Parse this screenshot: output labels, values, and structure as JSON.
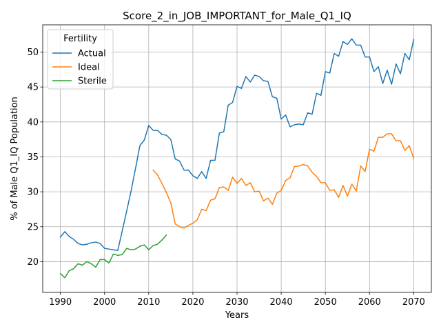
{
  "chart_data": {
    "type": "line",
    "title": "Score_2_in_JOB_IMPORTANT_for_Male_Q1_IQ",
    "xlabel": "Years",
    "ylabel": "% of Male Q1_IQ Population",
    "xlim": [
      1986.0,
      2074.0
    ],
    "ylim": [
      15.6,
      53.9
    ],
    "xticks": [
      1990,
      2000,
      2010,
      2020,
      2030,
      2040,
      2050,
      2060,
      2070
    ],
    "yticks": [
      20,
      25,
      30,
      35,
      40,
      45,
      50
    ],
    "grid": true,
    "legend": {
      "title": "Fertility",
      "placement": "top-left"
    },
    "series": [
      {
        "name": "Actual",
        "color": "#1f77b4",
        "x_start": 1990,
        "values": [
          23.5,
          24.3,
          23.6,
          23.2,
          22.6,
          22.4,
          22.5,
          22.7,
          22.8,
          22.6,
          21.9,
          21.8,
          21.7,
          21.6,
          24.4,
          27.2,
          30.1,
          33.3,
          36.6,
          37.4,
          39.5,
          38.8,
          38.8,
          38.2,
          38.1,
          37.5,
          34.7,
          34.4,
          33.1,
          33.1,
          32.3,
          31.9,
          32.9,
          31.9,
          34.5,
          34.5,
          38.4,
          38.6,
          42.4,
          42.8,
          45.1,
          44.8,
          46.5,
          45.7,
          46.7,
          46.5,
          45.9,
          45.8,
          43.6,
          43.4,
          40.4,
          41.0,
          39.3,
          39.6,
          39.7,
          39.6,
          41.3,
          41.1,
          44.1,
          43.8,
          47.2,
          47.0,
          49.8,
          49.4,
          51.5,
          51.1,
          51.9,
          51.0,
          51.0,
          49.3,
          49.3,
          47.2,
          47.9,
          45.5,
          47.4,
          45.4,
          48.3,
          46.9,
          49.8,
          48.9,
          51.8
        ]
      },
      {
        "name": "Ideal",
        "color": "#ff7f0e",
        "x_start": 2011,
        "values": [
          33.1,
          32.4,
          31.2,
          29.9,
          28.4,
          25.4,
          25.0,
          24.8,
          25.2,
          25.5,
          26.0,
          27.5,
          27.3,
          28.8,
          29.0,
          30.6,
          30.7,
          30.2,
          32.1,
          31.2,
          31.9,
          30.9,
          31.3,
          30.0,
          30.1,
          28.7,
          29.1,
          28.2,
          29.8,
          30.2,
          31.6,
          32.0,
          33.6,
          33.7,
          33.9,
          33.7,
          32.8,
          32.2,
          31.3,
          31.3,
          30.2,
          30.3,
          29.2,
          30.9,
          29.4,
          31.1,
          30.1,
          33.7,
          32.9,
          36.1,
          35.8,
          37.8,
          37.8,
          38.3,
          38.3,
          37.3,
          37.3,
          35.9,
          36.6,
          34.8
        ]
      },
      {
        "name": "Sterile",
        "color": "#2ca02c",
        "x_start": 1990,
        "values": [
          18.3,
          17.7,
          18.7,
          19.0,
          19.7,
          19.5,
          20.0,
          19.7,
          19.2,
          20.3,
          20.3,
          19.8,
          21.1,
          20.9,
          21.0,
          21.9,
          21.7,
          21.8,
          22.2,
          22.4,
          21.7,
          22.3,
          22.5,
          23.1,
          23.8
        ]
      }
    ]
  }
}
